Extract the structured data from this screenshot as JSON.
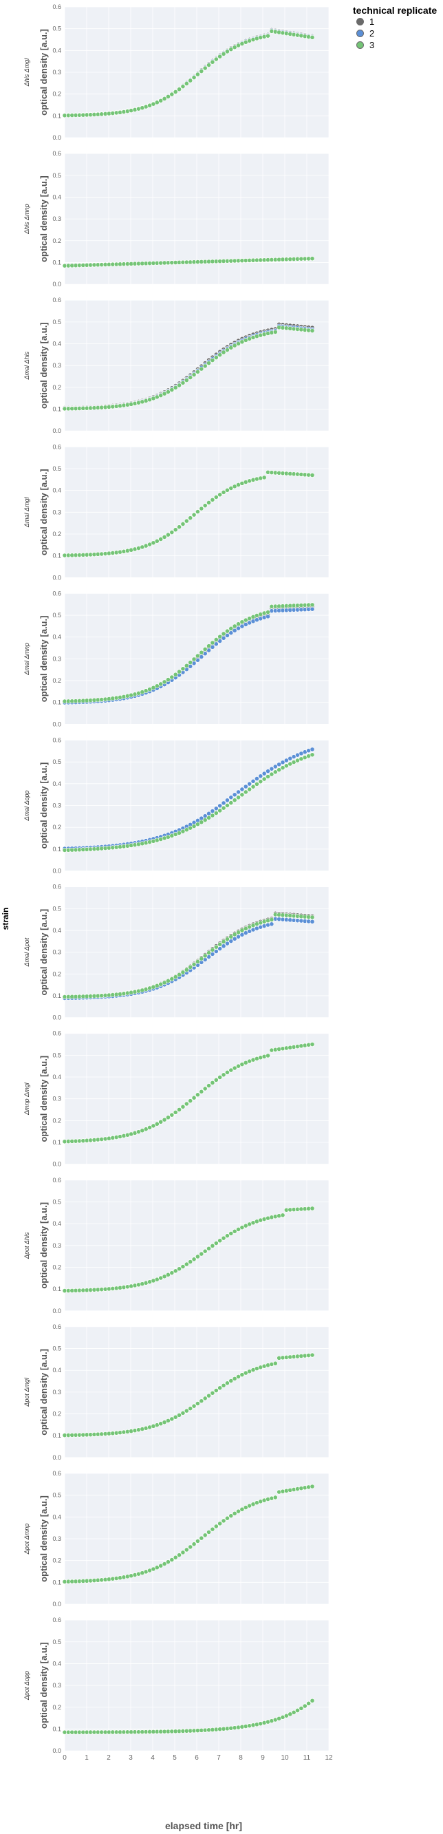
{
  "legend": {
    "title": "technical replicate",
    "entries": [
      {
        "label": "1",
        "color": "#6a6a6a"
      },
      {
        "label": "2",
        "color": "#5b8fd6"
      },
      {
        "label": "3",
        "color": "#74c476"
      }
    ]
  },
  "facet_label": "strain",
  "colors": {
    "panel_bg": "#eef1f6",
    "grid": "#ffffff",
    "tick_text": "#666666",
    "axis_title": "#555555",
    "point_edge": "#ffffff"
  },
  "chart_data": {
    "type": "scatter",
    "xlabel": "elapsed time [hr]",
    "ylabel": "optical density [a.u.]",
    "xlim": [
      0,
      12
    ],
    "ylim": [
      0,
      0.6
    ],
    "x_ticks": [
      "0",
      "1",
      "2",
      "3",
      "4",
      "5",
      "6",
      "7",
      "8",
      "9",
      "10",
      "11",
      "12"
    ],
    "y_ticks": [
      "0.0",
      "0.1",
      "0.2",
      "0.3",
      "0.4",
      "0.5",
      "0.6"
    ],
    "x_range_data": [
      0,
      11.25
    ],
    "panels": [
      {
        "strain": "Δhis Δmgl",
        "curve": {
          "kind": "logistic",
          "base": 0.1,
          "K": 0.49,
          "mid": 6.1,
          "k": 0.88,
          "peak_t": 9.3,
          "tail": 0.46
        },
        "replicate_offsets": {
          "1": 0.006,
          "2": 0.003,
          "3": 0.0
        }
      },
      {
        "strain": "Δhis Δmnp",
        "curve": {
          "kind": "linear",
          "start": 0.085,
          "end": 0.118
        },
        "replicate_offsets": {
          "1": 0.0,
          "2": 0.0,
          "3": 0.0
        }
      },
      {
        "strain": "Δmal Δhis",
        "curve": {
          "kind": "logistic",
          "base": 0.1,
          "K": 0.475,
          "mid": 6.25,
          "k": 0.85,
          "peak_t": 9.6,
          "tail": 0.46
        },
        "replicate_offsets": {
          "1": 0.014,
          "2": 0.006,
          "3": 0.0
        }
      },
      {
        "strain": "Δmal Δmgl",
        "curve": {
          "kind": "logistic",
          "base": 0.1,
          "K": 0.48,
          "mid": 5.9,
          "k": 0.9,
          "peak_t": 9.2,
          "tail": 0.47
        },
        "replicate_offsets": {
          "1": 0.0,
          "2": 0.0,
          "3": 0.0
        }
      },
      {
        "strain": "Δmal Δmnp",
        "curve": {
          "kind": "logistic",
          "base": 0.1,
          "K": 0.54,
          "mid": 6.2,
          "k": 0.82,
          "peak_t": 9.4,
          "tail": 0.54
        },
        "replicate_offsets": {
          "1": 0.0,
          "2": -0.012,
          "3": 0.008
        }
      },
      {
        "strain": "Δmal Δopp",
        "curve": {
          "kind": "logistic",
          "base": 0.09,
          "K": 0.6,
          "mid": 8.0,
          "k": 0.58,
          "peak_t": null,
          "tail": null
        },
        "replicate_offsets": {
          "1": 0.0,
          "2": 0.025,
          "3": 0.0
        }
      },
      {
        "strain": "Δmal Δpot",
        "curve": {
          "kind": "logistic",
          "base": 0.09,
          "K": 0.47,
          "mid": 6.45,
          "k": 0.82,
          "peak_t": 9.5,
          "tail": 0.45
        },
        "replicate_offsets": {
          "1": 0.015,
          "2": -0.01,
          "3": 0.01
        }
      },
      {
        "strain": "Δmnp Δmgl",
        "curve": {
          "kind": "logistic",
          "base": 0.1,
          "K": 0.53,
          "mid": 6.0,
          "k": 0.78,
          "peak_t": 9.3,
          "tail": 0.55
        },
        "replicate_offsets": {
          "1": 0.0,
          "2": 0.0,
          "3": 0.0
        }
      },
      {
        "strain": "Δpot Δhis",
        "curve": {
          "kind": "logistic",
          "base": 0.09,
          "K": 0.46,
          "mid": 6.4,
          "k": 0.8,
          "peak_t": 10.0,
          "tail": 0.47
        },
        "replicate_offsets": {
          "1": 0.0,
          "2": 0.0,
          "3": 0.0
        }
      },
      {
        "strain": "Δpot Δmgl",
        "curve": {
          "kind": "logistic",
          "base": 0.1,
          "K": 0.46,
          "mid": 6.5,
          "k": 0.8,
          "peak_t": 9.7,
          "tail": 0.47
        },
        "replicate_offsets": {
          "1": 0.0,
          "2": 0.0,
          "3": 0.0
        }
      },
      {
        "strain": "Δpot Δmnp",
        "curve": {
          "kind": "logistic",
          "base": 0.1,
          "K": 0.52,
          "mid": 6.3,
          "k": 0.78,
          "peak_t": 9.6,
          "tail": 0.54
        },
        "replicate_offsets": {
          "1": 0.0,
          "2": 0.0,
          "3": 0.0
        }
      },
      {
        "strain": "Δpot Δopp",
        "curve": {
          "kind": "exp",
          "base": 0.085,
          "end": 0.23,
          "rate": 0.55
        },
        "replicate_offsets": {
          "1": 0.0,
          "2": 0.0,
          "3": 0.0
        }
      }
    ]
  }
}
